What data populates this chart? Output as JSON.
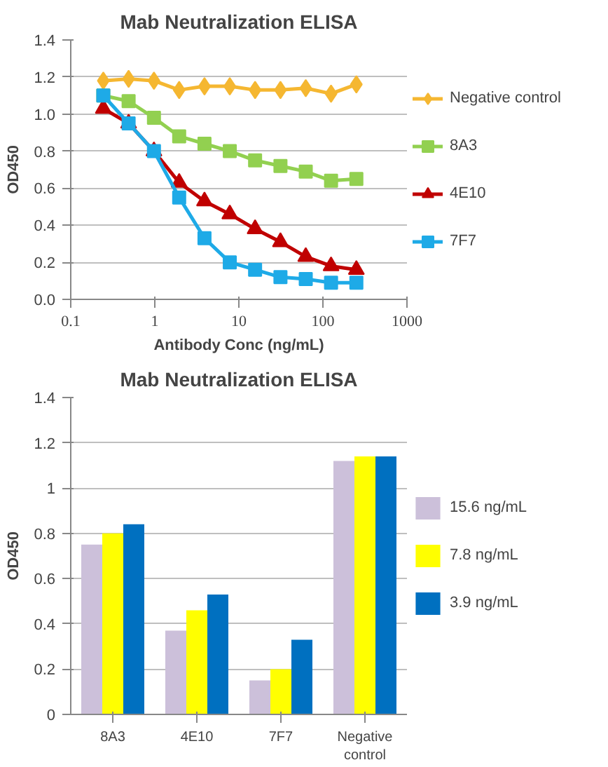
{
  "chart_data": [
    {
      "type": "line",
      "title": "Mab Neutralization ELISA",
      "xlabel": "Antibody Conc (ng/mL)",
      "ylabel": "OD450",
      "log": "x",
      "x": [
        0.244,
        0.488,
        0.977,
        1.95,
        3.9,
        7.8,
        15.6,
        31.25,
        62.5,
        125,
        250
      ],
      "xlim": [
        0.1,
        1000
      ],
      "xticks": [
        0.1,
        1,
        10,
        100,
        1000
      ],
      "ylim": [
        0,
        1.4
      ],
      "yticks": [
        {
          "value": 0,
          "label": "0.0"
        },
        {
          "value": 0.2,
          "label": "0.2"
        },
        {
          "value": 0.4,
          "label": "0.4"
        },
        {
          "value": 0.6,
          "label": "0.6"
        },
        {
          "value": 0.8,
          "label": "0.8"
        },
        {
          "value": 1.0,
          "label": "1.0"
        },
        {
          "value": 1.2,
          "label": "1.2"
        },
        {
          "value": 1.4,
          "label": "1.4"
        }
      ],
      "grid": "y",
      "legend": "right",
      "line_style": "solid",
      "series": [
        {
          "name": "Negative control",
          "color": "#f5b731",
          "marker": "diamond",
          "values": [
            1.18,
            1.19,
            1.18,
            1.13,
            1.15,
            1.15,
            1.13,
            1.13,
            1.14,
            1.11,
            1.16
          ]
        },
        {
          "name": "8A3",
          "color": "#92d050",
          "marker": "square",
          "values": [
            1.1,
            1.07,
            0.98,
            0.88,
            0.84,
            0.8,
            0.75,
            0.72,
            0.69,
            0.64,
            0.65
          ]
        },
        {
          "name": "4E10",
          "color": "#c00000",
          "marker": "triangle",
          "values": [
            1.03,
            0.95,
            0.8,
            0.63,
            0.53,
            0.46,
            0.38,
            0.31,
            0.23,
            0.18,
            0.16
          ]
        },
        {
          "name": "7F7",
          "color": "#1eaae7",
          "marker": "square",
          "values": [
            1.1,
            0.95,
            0.8,
            0.55,
            0.33,
            0.2,
            0.16,
            0.12,
            0.11,
            0.09,
            0.09
          ]
        }
      ]
    },
    {
      "type": "bar",
      "title": "Mab Neutralization ELISA",
      "ylabel": "OD450",
      "categories": [
        "8A3",
        "4E10",
        "7F7",
        "Negative control"
      ],
      "ylim": [
        0,
        1.4
      ],
      "yticks": [
        0,
        0.2,
        0.4,
        0.6,
        0.8,
        1,
        1.2,
        1.4
      ],
      "grid": "y",
      "legend": "right",
      "series": [
        {
          "name": "15.6 ng/mL",
          "color": "#ccc0da",
          "values": [
            0.75,
            0.37,
            0.15,
            1.12
          ]
        },
        {
          "name": "7.8 ng/mL",
          "color": "#ffff00",
          "values": [
            0.8,
            0.46,
            0.2,
            1.14
          ]
        },
        {
          "name": "3.9 ng/mL",
          "color": "#0070c0",
          "values": [
            0.84,
            0.53,
            0.33,
            1.14
          ]
        }
      ]
    }
  ]
}
